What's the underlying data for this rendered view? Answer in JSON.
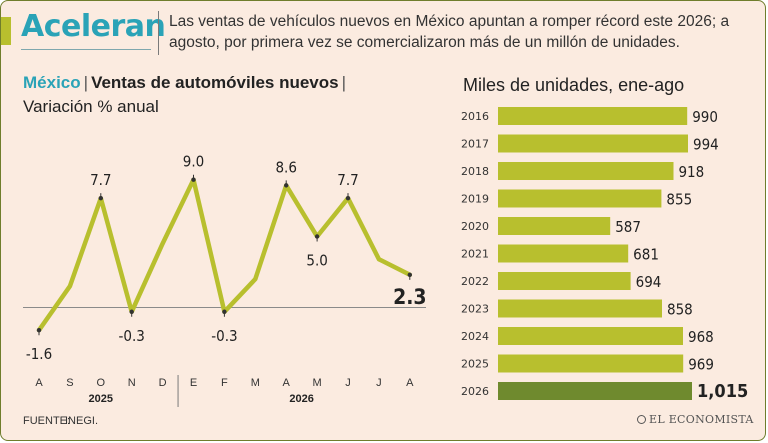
{
  "header": {
    "headline": "Aceleran",
    "subheadline": "Las ventas de vehículos nuevos en México apuntan a romper récord este 2026; a agosto, por primera vez se comercializaron más de un millón de unidades."
  },
  "line_chart_heading": {
    "country": "México",
    "separator": "|",
    "topic": "Ventas de automóviles nuevos",
    "subtitle": "Variación % anual"
  },
  "bar_chart_heading": {
    "title": "Miles de unidades, ene-ago"
  },
  "footer": {
    "source_label": "FUENTE:",
    "source_value": "INEGI.",
    "brand": "EL ECONOMISTA"
  },
  "colors": {
    "line": "#b8bf2e",
    "bar": "#b8bf2e",
    "bar_highlight": "#6f8a2e",
    "accent": "#2aa3b7"
  },
  "chart_data": [
    {
      "type": "line",
      "title": "Ventas de automóviles nuevos",
      "subtitle": "Variación % anual",
      "x": [
        "A",
        "S",
        "O",
        "N",
        "D",
        "E",
        "F",
        "M",
        "A",
        "M",
        "J",
        "J",
        "A"
      ],
      "year_groups": [
        {
          "label": "2025",
          "start": 0,
          "end": 4
        },
        {
          "label": "2026",
          "start": 5,
          "end": 12
        }
      ],
      "series": [
        {
          "values": [
            -1.6,
            1.5,
            7.7,
            -0.3,
            4.5,
            9.0,
            -0.3,
            2.0,
            8.6,
            5.0,
            7.7,
            3.4,
            2.3
          ]
        }
      ],
      "labels": [
        {
          "index": 0,
          "text": "-1.6",
          "pos": "below",
          "bold": false
        },
        {
          "index": 2,
          "text": "7.7",
          "pos": "above",
          "bold": false
        },
        {
          "index": 3,
          "text": "-0.3",
          "pos": "below",
          "bold": false
        },
        {
          "index": 5,
          "text": "9.0",
          "pos": "above",
          "bold": false
        },
        {
          "index": 6,
          "text": "-0.3",
          "pos": "below",
          "bold": false
        },
        {
          "index": 8,
          "text": "8.6",
          "pos": "above",
          "bold": false
        },
        {
          "index": 9,
          "text": "5.0",
          "pos": "below",
          "bold": false
        },
        {
          "index": 10,
          "text": "7.7",
          "pos": "above",
          "bold": false
        },
        {
          "index": 12,
          "text": "2.3",
          "pos": "below",
          "bold": true
        }
      ],
      "ylim": [
        -2,
        10
      ],
      "baseline": 0,
      "grid": false
    },
    {
      "type": "bar",
      "orientation": "horizontal",
      "title": "Miles de unidades, ene-ago",
      "categories": [
        "2016",
        "2017",
        "2018",
        "2019",
        "2020",
        "2021",
        "2022",
        "2023",
        "2024",
        "2025",
        "2026"
      ],
      "values": [
        990,
        994,
        918,
        855,
        587,
        681,
        694,
        858,
        968,
        969,
        1015
      ],
      "value_labels": [
        "990",
        "994",
        "918",
        "855",
        "587",
        "681",
        "694",
        "858",
        "968",
        "969",
        "1,015"
      ],
      "highlight_index": 10,
      "xlim": [
        0,
        1015
      ],
      "grid": false
    }
  ]
}
